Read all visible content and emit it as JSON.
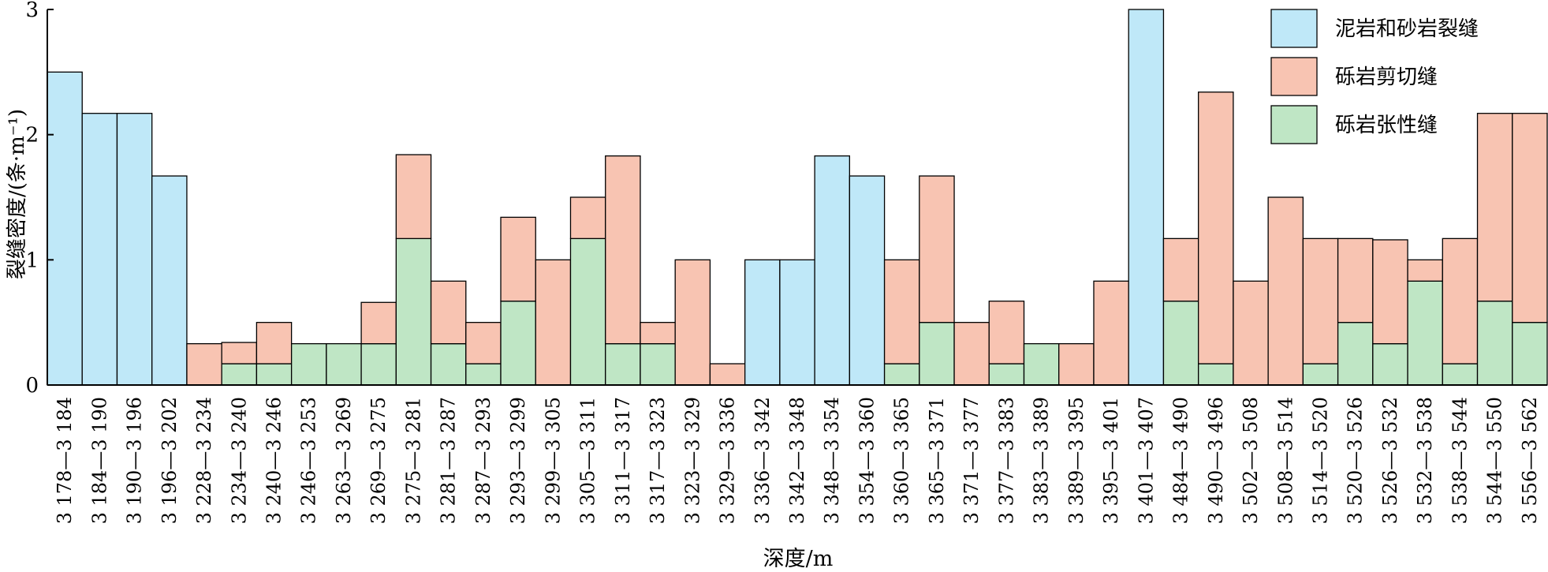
{
  "chart_data": {
    "type": "bar",
    "stacked": true,
    "xlabel": "深度/m",
    "ylabel": "裂缝密度/(条·m⁻¹)",
    "ylim": [
      0,
      3
    ],
    "yticks": [
      "0",
      "1",
      "2",
      "3"
    ],
    "legend_position": "top-right",
    "categories": [
      "3 178—3 184",
      "3 184—3 190",
      "3 190—3 196",
      "3 196—3 202",
      "3 228—3 234",
      "3 234—3 240",
      "3 240—3 246",
      "3 246—3 253",
      "3 263—3 269",
      "3 269—3 275",
      "3 275—3 281",
      "3 281—3 287",
      "3 287—3 293",
      "3 293—3 299",
      "3 299—3 305",
      "3 305—3 311",
      "3 311—3 317",
      "3 317—3 323",
      "3 323—3 329",
      "3 329—3 336",
      "3 336—3 342",
      "3 342—3 348",
      "3 348—3 354",
      "3 354—3 360",
      "3 360—3 365",
      "3 365—3 371",
      "3 371—3 377",
      "3 377—3 383",
      "3 383—3 389",
      "3 389—3 395",
      "3 395—3 401",
      "3 401—3 407",
      "3 484—3 490",
      "3 490—3 496",
      "3 502—3 508",
      "3 508—3 514",
      "3 514—3 520",
      "3 520—3 526",
      "3 526—3 532",
      "3 532—3 538",
      "3 538—3 544",
      "3 544—3 550",
      "3 556—3 562"
    ],
    "series": [
      {
        "name": "泥岩和砂岩裂缝",
        "color": "#bfe8f8",
        "values": [
          2.5,
          2.17,
          2.17,
          1.67,
          0,
          0,
          0,
          0,
          0,
          0,
          0,
          0,
          0,
          0,
          0,
          0,
          0,
          0,
          0,
          0,
          1.0,
          1.0,
          1.83,
          1.67,
          0,
          0,
          0,
          0,
          0,
          0,
          0,
          3.0,
          0,
          0,
          0,
          0,
          0,
          0,
          0,
          0,
          0,
          0,
          0
        ]
      },
      {
        "name": "砾岩张性缝",
        "color": "#bfe6c5",
        "values": [
          0,
          0,
          0,
          0,
          0,
          0.17,
          0.17,
          0.33,
          0.33,
          0.33,
          1.17,
          0.33,
          0.17,
          0.67,
          0,
          1.17,
          0.33,
          0.33,
          0,
          0,
          0,
          0,
          0,
          0,
          0.17,
          0.5,
          0,
          0.17,
          0.33,
          0,
          0,
          0,
          0.67,
          0.17,
          0,
          0,
          0.17,
          0.5,
          0.33,
          0.83,
          0.17,
          0.67,
          0.5
        ]
      },
      {
        "name": "砾岩剪切缝",
        "color": "#f8c4b2",
        "values": [
          0,
          0,
          0,
          0,
          0.33,
          0.17,
          0.33,
          0,
          0,
          0.33,
          0.67,
          0.5,
          0.33,
          0.67,
          1.0,
          0.33,
          1.5,
          0.17,
          1.0,
          0.17,
          0,
          0,
          0,
          0,
          0.83,
          1.17,
          0.5,
          0.5,
          0,
          0.33,
          0.83,
          0,
          0.5,
          2.17,
          0.83,
          1.5,
          1.0,
          0.67,
          0.83,
          0.17,
          1.0,
          1.5,
          1.67
        ]
      }
    ],
    "legend": [
      "泥岩和砂岩裂缝",
      "砾岩剪切缝",
      "砾岩张性缝"
    ]
  }
}
